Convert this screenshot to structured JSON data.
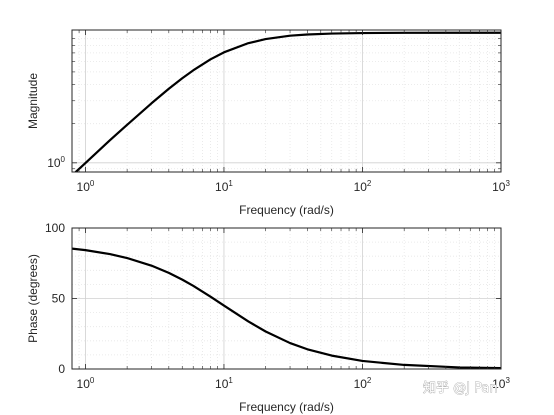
{
  "chart_data": [
    {
      "type": "line",
      "xlabel": "Frequency (rad/s)",
      "ylabel": "Magnitude",
      "xscale": "log",
      "yscale": "log",
      "xlim": [
        0.8,
        1000
      ],
      "ylim": [
        0.85,
        10.5
      ],
      "grid": true,
      "minor_grid": true,
      "x_ticks": [
        1,
        10,
        100,
        1000
      ],
      "y_ticks": [
        1
      ],
      "x_tick_labels": [
        {
          "base": "10",
          "exp": "0"
        },
        {
          "base": "10",
          "exp": "1"
        },
        {
          "base": "10",
          "exp": "2"
        },
        {
          "base": "10",
          "exp": "3"
        }
      ],
      "y_tick_labels": [
        {
          "base": "10",
          "exp": "0"
        }
      ],
      "series": [
        {
          "x": [
            0.8,
            1,
            1.5,
            2,
            3,
            4,
            5,
            6,
            8,
            10,
            15,
            20,
            30,
            40,
            60,
            100,
            200,
            500,
            1000
          ],
          "y": [
            0.8,
            0.995,
            1.49,
            1.96,
            2.87,
            3.71,
            4.47,
            5.14,
            6.25,
            7.07,
            8.32,
            8.94,
            9.49,
            9.7,
            9.86,
            9.95,
            9.99,
            10.0,
            10.0
          ],
          "color": "#000000"
        }
      ]
    },
    {
      "type": "line",
      "xlabel": "Frequency (rad/s)",
      "ylabel": "Phase (degrees)",
      "xscale": "log",
      "yscale": "linear",
      "xlim": [
        0.8,
        1000
      ],
      "ylim": [
        0,
        100
      ],
      "grid": true,
      "minor_grid": true,
      "x_ticks": [
        1,
        10,
        100,
        1000
      ],
      "y_ticks": [
        0,
        50,
        100
      ],
      "x_tick_labels": [
        {
          "base": "10",
          "exp": "0"
        },
        {
          "base": "10",
          "exp": "1"
        },
        {
          "base": "10",
          "exp": "2"
        },
        {
          "base": "10",
          "exp": "3"
        }
      ],
      "y_tick_labels": [
        "0",
        "50",
        "100"
      ],
      "series": [
        {
          "x": [
            0.8,
            1,
            1.5,
            2,
            3,
            4,
            5,
            6,
            8,
            10,
            15,
            20,
            30,
            40,
            60,
            100,
            200,
            500,
            1000
          ],
          "y": [
            85.4,
            84.3,
            81.5,
            78.7,
            73.3,
            68.2,
            63.4,
            59.0,
            51.3,
            45.0,
            33.7,
            26.6,
            18.4,
            14.0,
            9.5,
            5.7,
            2.9,
            1.1,
            0.6
          ],
          "color": "#000000"
        }
      ]
    }
  ],
  "watermark": {
    "text": "知乎 @J Pan"
  }
}
